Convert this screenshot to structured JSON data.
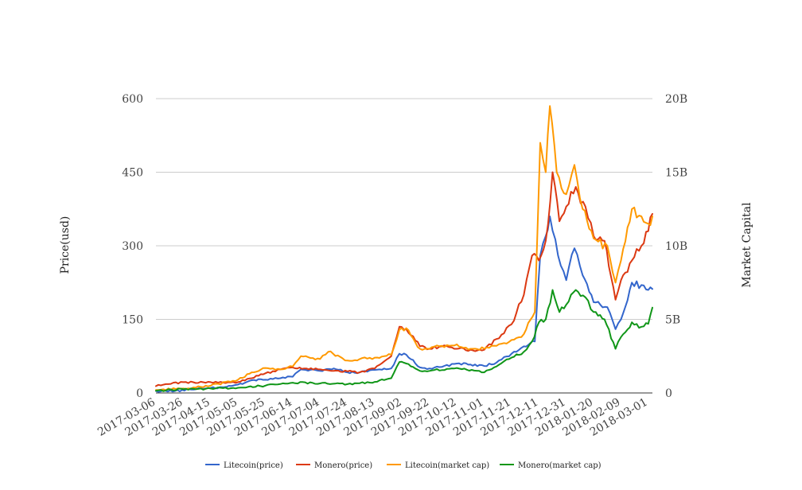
{
  "chart_data": {
    "type": "line",
    "title": "",
    "xlabel": "",
    "ylabel": "Price(usd)",
    "y2label": "Market Capital",
    "ylim": [
      0,
      600
    ],
    "y2lim": [
      0,
      20000000000
    ],
    "y_ticks": [
      "0",
      "150",
      "300",
      "450",
      "600"
    ],
    "y2_ticks": [
      "0",
      "5B",
      "10B",
      "15B",
      "20B"
    ],
    "x_tick_labels": [
      "2017-03-06",
      "2017-03-26",
      "2017-04-15",
      "2017-05-05",
      "2017-05-25",
      "2017-06-14",
      "2017-07-04",
      "2017-07-24",
      "2017-08-13",
      "2017-09-02",
      "2017-09-22",
      "2017-10-12",
      "2017-11-01",
      "2017-11-21",
      "2017-12-11",
      "2017-12-31",
      "2018-01-20",
      "2018-02-09",
      "2018-03-01"
    ],
    "x_start": "2017-03-06",
    "x_end": "2018-03-04",
    "grid": true,
    "legend_position": "bottom",
    "colors": {
      "litecoin_price": "#3366cc",
      "monero_price": "#dc3912",
      "litecoin_cap": "#ff9900",
      "monero_cap": "#109618",
      "grid": "#cccccc",
      "axis": "#333333"
    },
    "series": [
      {
        "name": "Litecoin(price)",
        "axis": "left",
        "color": "#3366cc",
        "points": [
          [
            "2017-03-06",
            4
          ],
          [
            "2017-03-20",
            4
          ],
          [
            "2017-04-01",
            7
          ],
          [
            "2017-04-15",
            10
          ],
          [
            "2017-04-25",
            12
          ],
          [
            "2017-05-05",
            17
          ],
          [
            "2017-05-15",
            26
          ],
          [
            "2017-05-25",
            27
          ],
          [
            "2017-06-05",
            30
          ],
          [
            "2017-06-14",
            33
          ],
          [
            "2017-06-20",
            48
          ],
          [
            "2017-07-04",
            45
          ],
          [
            "2017-07-14",
            50
          ],
          [
            "2017-07-24",
            42
          ],
          [
            "2017-08-02",
            42
          ],
          [
            "2017-08-13",
            47
          ],
          [
            "2017-08-25",
            50
          ],
          [
            "2017-08-31",
            80
          ],
          [
            "2017-09-05",
            78
          ],
          [
            "2017-09-15",
            52
          ],
          [
            "2017-09-22",
            50
          ],
          [
            "2017-10-01",
            53
          ],
          [
            "2017-10-12",
            60
          ],
          [
            "2017-10-22",
            58
          ],
          [
            "2017-11-01",
            55
          ],
          [
            "2017-11-10",
            62
          ],
          [
            "2017-11-21",
            80
          ],
          [
            "2017-11-30",
            95
          ],
          [
            "2017-12-08",
            105
          ],
          [
            "2017-12-12",
            280
          ],
          [
            "2017-12-16",
            320
          ],
          [
            "2017-12-19",
            360
          ],
          [
            "2017-12-25",
            280
          ],
          [
            "2017-12-31",
            230
          ],
          [
            "2018-01-06",
            295
          ],
          [
            "2018-01-12",
            240
          ],
          [
            "2018-01-20",
            185
          ],
          [
            "2018-01-30",
            175
          ],
          [
            "2018-02-05",
            130
          ],
          [
            "2018-02-09",
            150
          ],
          [
            "2018-02-17",
            225
          ],
          [
            "2018-02-24",
            220
          ],
          [
            "2018-03-01",
            210
          ],
          [
            "2018-03-04",
            212
          ]
        ]
      },
      {
        "name": "Monero(price)",
        "axis": "left",
        "color": "#dc3912",
        "points": [
          [
            "2017-03-06",
            14
          ],
          [
            "2017-03-15",
            18
          ],
          [
            "2017-03-26",
            22
          ],
          [
            "2017-04-15",
            22
          ],
          [
            "2017-05-05",
            22
          ],
          [
            "2017-05-15",
            30
          ],
          [
            "2017-05-25",
            40
          ],
          [
            "2017-06-05",
            48
          ],
          [
            "2017-06-14",
            52
          ],
          [
            "2017-06-24",
            50
          ],
          [
            "2017-07-04",
            48
          ],
          [
            "2017-07-14",
            45
          ],
          [
            "2017-07-24",
            44
          ],
          [
            "2017-08-02",
            42
          ],
          [
            "2017-08-13",
            50
          ],
          [
            "2017-08-25",
            75
          ],
          [
            "2017-08-31",
            135
          ],
          [
            "2017-09-05",
            130
          ],
          [
            "2017-09-15",
            95
          ],
          [
            "2017-09-22",
            90
          ],
          [
            "2017-10-01",
            95
          ],
          [
            "2017-10-12",
            90
          ],
          [
            "2017-10-22",
            88
          ],
          [
            "2017-11-01",
            88
          ],
          [
            "2017-11-10",
            110
          ],
          [
            "2017-11-21",
            140
          ],
          [
            "2017-11-30",
            200
          ],
          [
            "2017-12-06",
            280
          ],
          [
            "2017-12-11",
            270
          ],
          [
            "2017-12-16",
            310
          ],
          [
            "2017-12-21",
            450
          ],
          [
            "2017-12-26",
            350
          ],
          [
            "2017-12-31",
            380
          ],
          [
            "2018-01-07",
            420
          ],
          [
            "2018-01-14",
            380
          ],
          [
            "2018-01-20",
            320
          ],
          [
            "2018-01-28",
            310
          ],
          [
            "2018-02-05",
            190
          ],
          [
            "2018-02-09",
            230
          ],
          [
            "2018-02-17",
            270
          ],
          [
            "2018-02-24",
            300
          ],
          [
            "2018-03-01",
            330
          ],
          [
            "2018-03-04",
            365
          ]
        ]
      },
      {
        "name": "Litecoin(market cap)",
        "axis": "right",
        "color": "#ff9900",
        "points": [
          [
            "2017-03-06",
            200000000
          ],
          [
            "2017-03-26",
            300000000
          ],
          [
            "2017-04-15",
            500000000
          ],
          [
            "2017-05-05",
            900000000
          ],
          [
            "2017-05-15",
            1400000000
          ],
          [
            "2017-05-25",
            1700000000
          ],
          [
            "2017-06-05",
            1600000000
          ],
          [
            "2017-06-14",
            1800000000
          ],
          [
            "2017-06-20",
            2500000000
          ],
          [
            "2017-07-04",
            2300000000
          ],
          [
            "2017-07-10",
            2800000000
          ],
          [
            "2017-07-24",
            2200000000
          ],
          [
            "2017-08-02",
            2300000000
          ],
          [
            "2017-08-13",
            2400000000
          ],
          [
            "2017-08-25",
            2600000000
          ],
          [
            "2017-08-31",
            4300000000
          ],
          [
            "2017-09-05",
            4400000000
          ],
          [
            "2017-09-15",
            3000000000
          ],
          [
            "2017-09-22",
            3000000000
          ],
          [
            "2017-10-01",
            3200000000
          ],
          [
            "2017-10-12",
            3300000000
          ],
          [
            "2017-10-22",
            3000000000
          ],
          [
            "2017-11-01",
            3000000000
          ],
          [
            "2017-11-10",
            3200000000
          ],
          [
            "2017-11-21",
            3600000000
          ],
          [
            "2017-11-30",
            4000000000
          ],
          [
            "2017-12-08",
            5500000000
          ],
          [
            "2017-12-12",
            17000000000
          ],
          [
            "2017-12-16",
            15000000000
          ],
          [
            "2017-12-19",
            19500000000
          ],
          [
            "2017-12-24",
            15000000000
          ],
          [
            "2017-12-31",
            13500000000
          ],
          [
            "2018-01-06",
            15500000000
          ],
          [
            "2018-01-12",
            12500000000
          ],
          [
            "2018-01-20",
            10500000000
          ],
          [
            "2018-01-30",
            10000000000
          ],
          [
            "2018-02-05",
            7500000000
          ],
          [
            "2018-02-09",
            9000000000
          ],
          [
            "2018-02-17",
            12500000000
          ],
          [
            "2018-02-24",
            12000000000
          ],
          [
            "2018-03-01",
            11500000000
          ],
          [
            "2018-03-04",
            12000000000
          ]
        ]
      },
      {
        "name": "Monero(market cap)",
        "axis": "right",
        "color": "#109618",
        "points": [
          [
            "2017-03-06",
            150000000
          ],
          [
            "2017-03-26",
            250000000
          ],
          [
            "2017-04-15",
            300000000
          ],
          [
            "2017-05-05",
            350000000
          ],
          [
            "2017-05-25",
            500000000
          ],
          [
            "2017-06-14",
            700000000
          ],
          [
            "2017-07-04",
            650000000
          ],
          [
            "2017-07-24",
            600000000
          ],
          [
            "2017-08-13",
            750000000
          ],
          [
            "2017-08-25",
            1000000000
          ],
          [
            "2017-08-31",
            2100000000
          ],
          [
            "2017-09-05",
            2000000000
          ],
          [
            "2017-09-15",
            1500000000
          ],
          [
            "2017-09-22",
            1500000000
          ],
          [
            "2017-10-12",
            1700000000
          ],
          [
            "2017-11-01",
            1400000000
          ],
          [
            "2017-11-10",
            1800000000
          ],
          [
            "2017-11-21",
            2400000000
          ],
          [
            "2017-11-30",
            2800000000
          ],
          [
            "2017-12-06",
            3500000000
          ],
          [
            "2017-12-11",
            4800000000
          ],
          [
            "2017-12-16",
            5000000000
          ],
          [
            "2017-12-21",
            7000000000
          ],
          [
            "2017-12-26",
            5500000000
          ],
          [
            "2017-12-31",
            6000000000
          ],
          [
            "2018-01-07",
            7000000000
          ],
          [
            "2018-01-14",
            6500000000
          ],
          [
            "2018-01-20",
            5500000000
          ],
          [
            "2018-01-28",
            5000000000
          ],
          [
            "2018-02-05",
            3000000000
          ],
          [
            "2018-02-09",
            3800000000
          ],
          [
            "2018-02-17",
            4800000000
          ],
          [
            "2018-02-24",
            4500000000
          ],
          [
            "2018-03-01",
            4700000000
          ],
          [
            "2018-03-04",
            5800000000
          ]
        ]
      }
    ]
  }
}
